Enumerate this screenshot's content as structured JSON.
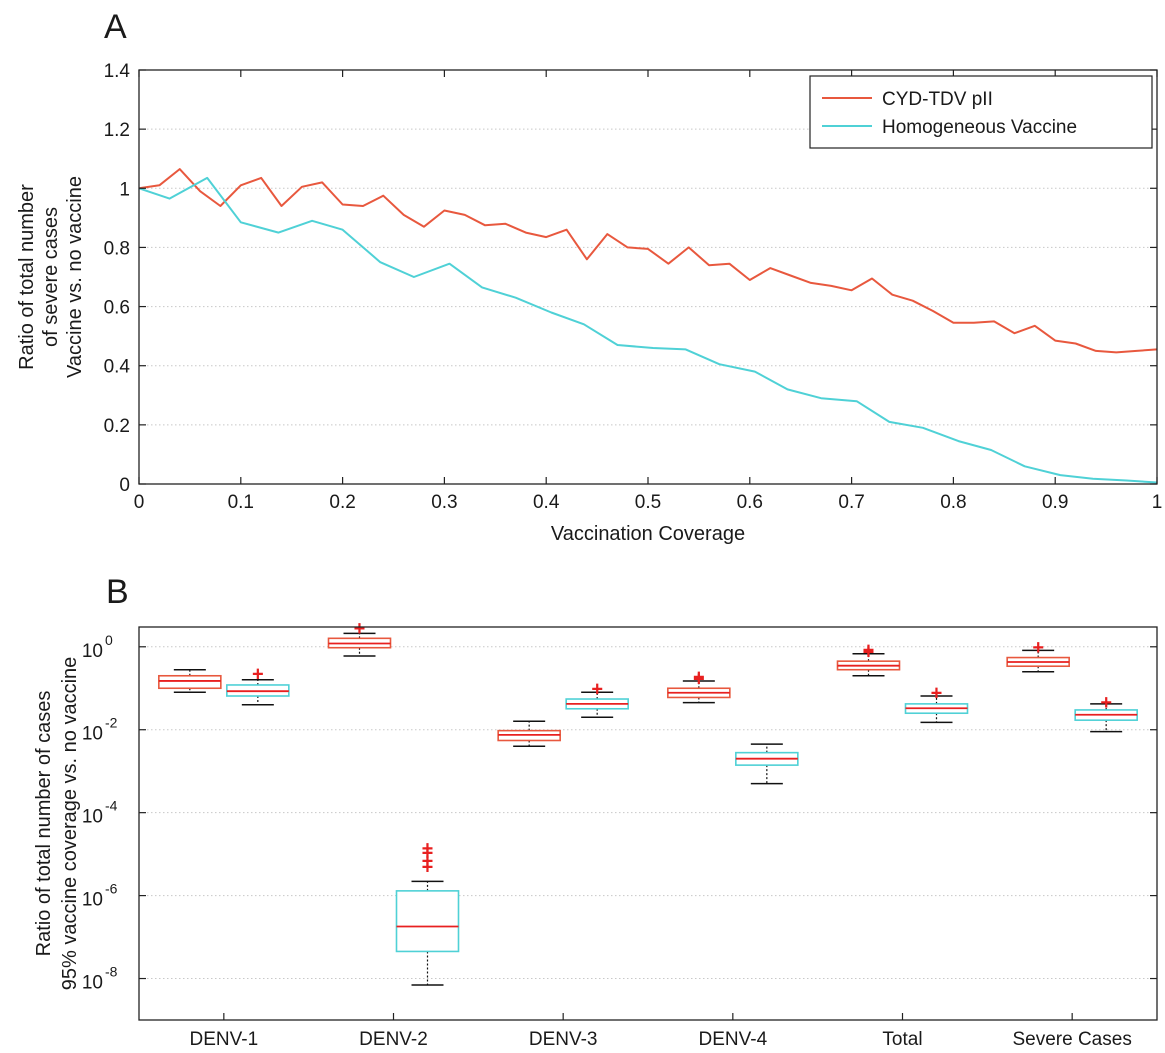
{
  "colors": {
    "cyd": "#e8583e",
    "homogeneous": "#4fd1d6",
    "median": "#e82020",
    "outlier": "#e82020",
    "whisker": "#111111",
    "grid": "#c8c8c8",
    "axis": "#222222"
  },
  "chart_data": [
    {
      "panel": "A",
      "type": "line",
      "xlabel": "Vaccination Coverage",
      "ylabel_lines": [
        "Ratio of total number",
        "of severe cases",
        "Vaccine vs. no vaccine"
      ],
      "xlim": [
        0,
        1
      ],
      "ylim": [
        0,
        1.4
      ],
      "xticks": [
        0,
        0.1,
        0.2,
        0.3,
        0.4,
        0.5,
        0.6,
        0.7,
        0.8,
        0.9,
        1
      ],
      "xtick_labels": [
        "0",
        "0.1",
        "0.2",
        "0.3",
        "0.4",
        "0.5",
        "0.6",
        "0.7",
        "0.8",
        "0.9",
        "1"
      ],
      "yticks": [
        0,
        0.2,
        0.4,
        0.6,
        0.8,
        1,
        1.2,
        1.4
      ],
      "ytick_labels": [
        "0",
        "0.2",
        "0.4",
        "0.6",
        "0.8",
        "1",
        "1.2",
        "1.4"
      ],
      "grid": "horizontal dotted",
      "legend_position": "top-right",
      "series": [
        {
          "name": "CYD-TDV pII",
          "color_key": "cyd",
          "x": [
            0,
            0.02,
            0.04,
            0.06,
            0.08,
            0.1,
            0.12,
            0.14,
            0.16,
            0.18,
            0.2,
            0.22,
            0.24,
            0.26,
            0.28,
            0.3,
            0.32,
            0.34,
            0.36,
            0.38,
            0.4,
            0.42,
            0.44,
            0.46,
            0.48,
            0.5,
            0.52,
            0.54,
            0.56,
            0.58,
            0.6,
            0.62,
            0.64,
            0.66,
            0.68,
            0.7,
            0.72,
            0.74,
            0.76,
            0.78,
            0.8,
            0.82,
            0.84,
            0.86,
            0.88,
            0.9,
            0.92,
            0.94,
            0.96,
            0.98,
            1.0
          ],
          "y": [
            1.0,
            1.01,
            1.065,
            0.99,
            0.94,
            1.01,
            1.035,
            0.94,
            1.005,
            1.02,
            0.945,
            0.94,
            0.975,
            0.91,
            0.87,
            0.925,
            0.91,
            0.875,
            0.88,
            0.85,
            0.835,
            0.86,
            0.76,
            0.845,
            0.8,
            0.795,
            0.745,
            0.8,
            0.74,
            0.745,
            0.69,
            0.73,
            0.705,
            0.68,
            0.67,
            0.655,
            0.695,
            0.64,
            0.62,
            0.585,
            0.545,
            0.545,
            0.55,
            0.51,
            0.535,
            0.485,
            0.475,
            0.45,
            0.445,
            0.45,
            0.455
          ]
        },
        {
          "name": "Homogeneous Vaccine",
          "color_key": "homogeneous",
          "x": [
            0,
            0.03,
            0.067,
            0.1,
            0.137,
            0.17,
            0.2,
            0.237,
            0.27,
            0.305,
            0.337,
            0.37,
            0.405,
            0.437,
            0.47,
            0.505,
            0.537,
            0.57,
            0.605,
            0.637,
            0.67,
            0.705,
            0.737,
            0.77,
            0.805,
            0.837,
            0.87,
            0.905,
            0.937,
            0.97,
            1.0
          ],
          "y": [
            1.0,
            0.965,
            1.035,
            0.885,
            0.85,
            0.89,
            0.86,
            0.75,
            0.7,
            0.745,
            0.665,
            0.63,
            0.58,
            0.54,
            0.47,
            0.46,
            0.455,
            0.405,
            0.38,
            0.32,
            0.29,
            0.28,
            0.21,
            0.19,
            0.145,
            0.115,
            0.06,
            0.03,
            0.018,
            0.012,
            0.005
          ]
        }
      ]
    },
    {
      "panel": "B",
      "type": "box",
      "yscale": "log",
      "ylabel_lines": [
        "Ratio of total number of cases",
        "95% vaccine coverage vs. no vaccine"
      ],
      "ylim": [
        1e-09,
        3
      ],
      "yticks": [
        1e-08,
        1e-06,
        0.0001,
        0.01,
        1
      ],
      "ytick_labels": [
        {
          "base": "10",
          "exp": "-8"
        },
        {
          "base": "10",
          "exp": "-6"
        },
        {
          "base": "10",
          "exp": "-4"
        },
        {
          "base": "10",
          "exp": "-2"
        },
        {
          "base": "10",
          "exp": "0"
        }
      ],
      "grid": "horizontal dotted",
      "categories": [
        "DENV-1",
        "DENV-2",
        "DENV-3",
        "DENV-4",
        "Total",
        "Severe Cases"
      ],
      "series": [
        {
          "name": "CYD-TDV pII",
          "color_key": "cyd",
          "boxes": [
            {
              "whisker_low": 0.08,
              "q1": 0.1,
              "median": 0.15,
              "q3": 0.2,
              "whisker_high": 0.28,
              "outliers": []
            },
            {
              "whisker_low": 0.6,
              "q1": 0.95,
              "median": 1.2,
              "q3": 1.6,
              "whisker_high": 2.1,
              "outliers": [
                2.8
              ]
            },
            {
              "whisker_low": 0.004,
              "q1": 0.0055,
              "median": 0.0075,
              "q3": 0.0095,
              "whisker_high": 0.016,
              "outliers": []
            },
            {
              "whisker_low": 0.045,
              "q1": 0.06,
              "median": 0.078,
              "q3": 0.1,
              "whisker_high": 0.15,
              "outliers": [
                0.19,
                0.17
              ]
            },
            {
              "whisker_low": 0.2,
              "q1": 0.28,
              "median": 0.35,
              "q3": 0.45,
              "whisker_high": 0.68,
              "outliers": [
                0.78,
                0.86
              ]
            },
            {
              "whisker_low": 0.25,
              "q1": 0.34,
              "median": 0.43,
              "q3": 0.55,
              "whisker_high": 0.82,
              "outliers": [
                1.0
              ]
            }
          ]
        },
        {
          "name": "Homogeneous Vaccine",
          "color_key": "homogeneous",
          "boxes": [
            {
              "whisker_low": 0.04,
              "q1": 0.065,
              "median": 0.085,
              "q3": 0.12,
              "whisker_high": 0.16,
              "outliers": [
                0.23
              ]
            },
            {
              "whisker_low": 7e-09,
              "q1": 4.5e-08,
              "median": 1.8e-07,
              "q3": 1.3e-06,
              "whisker_high": 2.2e-06,
              "outliers": [
                5e-06,
                7e-06,
                1.1e-05,
                1.4e-05
              ]
            },
            {
              "whisker_low": 0.02,
              "q1": 0.032,
              "median": 0.042,
              "q3": 0.055,
              "whisker_high": 0.08,
              "outliers": [
                0.1
              ]
            },
            {
              "whisker_low": 0.0005,
              "q1": 0.0014,
              "median": 0.002,
              "q3": 0.0028,
              "whisker_high": 0.0045,
              "outliers": []
            },
            {
              "whisker_low": 0.015,
              "q1": 0.025,
              "median": 0.033,
              "q3": 0.042,
              "whisker_high": 0.065,
              "outliers": [
                0.08
              ]
            },
            {
              "whisker_low": 0.009,
              "q1": 0.017,
              "median": 0.023,
              "q3": 0.03,
              "whisker_high": 0.042,
              "outliers": [
                0.046
              ]
            }
          ]
        }
      ]
    }
  ]
}
